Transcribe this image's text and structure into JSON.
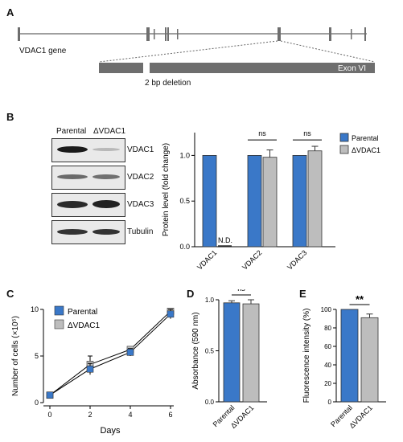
{
  "panels": {
    "a": "A",
    "b": "B",
    "c": "C",
    "d": "D",
    "e": "E"
  },
  "panel_a": {
    "gene_label": "VDAC1 gene",
    "exon_label": "Exon VI",
    "deletion_label": "2 bp deletion"
  },
  "panel_b": {
    "blot_columns": [
      "Parental",
      "ΔVDAC1"
    ],
    "blot_rows": [
      "VDAC1",
      "VDAC2",
      "VDAC3",
      "Tubulin"
    ]
  },
  "colors": {
    "parental": "#3a78c8",
    "delta": "#bdbdbd"
  },
  "chart_data": [
    {
      "type": "bar",
      "panel": "B",
      "categories": [
        "VDAC1",
        "VDAC2",
        "VDAC3"
      ],
      "series": [
        {
          "name": "Parental",
          "values": [
            1.0,
            1.0,
            1.0
          ],
          "errors": [
            0,
            0,
            0
          ]
        },
        {
          "name": "ΔVDAC1",
          "values": [
            0.0,
            0.98,
            1.05
          ],
          "errors": [
            0,
            0.08,
            0.05
          ]
        }
      ],
      "ylabel": "Protein level (fold change)",
      "ylim": [
        0,
        1.25
      ],
      "yticks": [
        "0.0",
        "0.5",
        "1.0"
      ],
      "annotations": {
        "nd": "N.D.",
        "sig": [
          "ns",
          "ns"
        ]
      },
      "legend": "top-right"
    },
    {
      "type": "line",
      "panel": "C",
      "x": [
        0,
        2,
        4,
        6
      ],
      "series": [
        {
          "name": "Parental",
          "values": [
            0.8,
            3.6,
            5.4,
            9.5
          ],
          "errors": [
            0.2,
            0.6,
            0.4,
            0.5
          ]
        },
        {
          "name": "ΔVDAC1",
          "values": [
            0.8,
            4.1,
            5.7,
            9.8
          ],
          "errors": [
            0.2,
            0.9,
            0.3,
            0.3
          ]
        }
      ],
      "xlabel": "Days",
      "ylabel": "Number of cells (×10⁵)",
      "xticks": [
        "0",
        "2",
        "4",
        "6"
      ],
      "yticks": [
        "0",
        "5",
        "10"
      ],
      "xlim": [
        0,
        6
      ],
      "ylim": [
        0,
        10
      ],
      "legend": "top-left"
    },
    {
      "type": "bar",
      "panel": "D",
      "categories": [
        "Parental",
        "ΔVDAC1"
      ],
      "values": [
        0.97,
        0.96
      ],
      "errors": [
        0.02,
        0.04
      ],
      "ylabel": "Absorbance (590 nm)",
      "ylim": [
        0,
        1.0
      ],
      "yticks": [
        "0.0",
        "0.5",
        "1.0"
      ],
      "sig": "ns"
    },
    {
      "type": "bar",
      "panel": "E",
      "categories": [
        "Parental",
        "ΔVDAC1"
      ],
      "values": [
        100,
        91
      ],
      "errors": [
        0,
        4
      ],
      "ylabel": "Fluorescence intensity (%)",
      "ylim": [
        0,
        100
      ],
      "yticks": [
        "0",
        "20",
        "40",
        "60",
        "80",
        "100"
      ],
      "sig": "**"
    }
  ]
}
